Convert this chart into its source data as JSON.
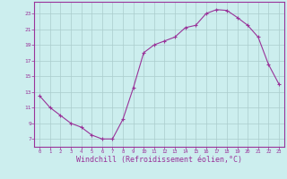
{
  "x": [
    0,
    1,
    2,
    3,
    4,
    5,
    6,
    7,
    8,
    9,
    10,
    11,
    12,
    13,
    14,
    15,
    16,
    17,
    18,
    19,
    20,
    21,
    22,
    23
  ],
  "y": [
    12.5,
    11.0,
    10.0,
    9.0,
    8.5,
    7.5,
    7.0,
    7.0,
    9.5,
    13.5,
    18.0,
    19.0,
    19.5,
    20.0,
    21.2,
    21.5,
    23.0,
    23.5,
    23.4,
    22.5,
    21.5,
    20.0,
    16.5,
    14.0
  ],
  "line_color": "#993399",
  "marker": "+",
  "marker_color": "#993399",
  "bg_color": "#cceeee",
  "grid_color": "#aacccc",
  "axis_color": "#993399",
  "tick_color": "#993399",
  "xlabel": "Windchill (Refroidissement éolien,°C)",
  "xlabel_color": "#993399",
  "xlabel_fontsize": 6,
  "ylabel_ticks": [
    7,
    9,
    11,
    13,
    15,
    17,
    19,
    21,
    23
  ],
  "xlim": [
    -0.5,
    23.5
  ],
  "ylim": [
    6.0,
    24.5
  ]
}
